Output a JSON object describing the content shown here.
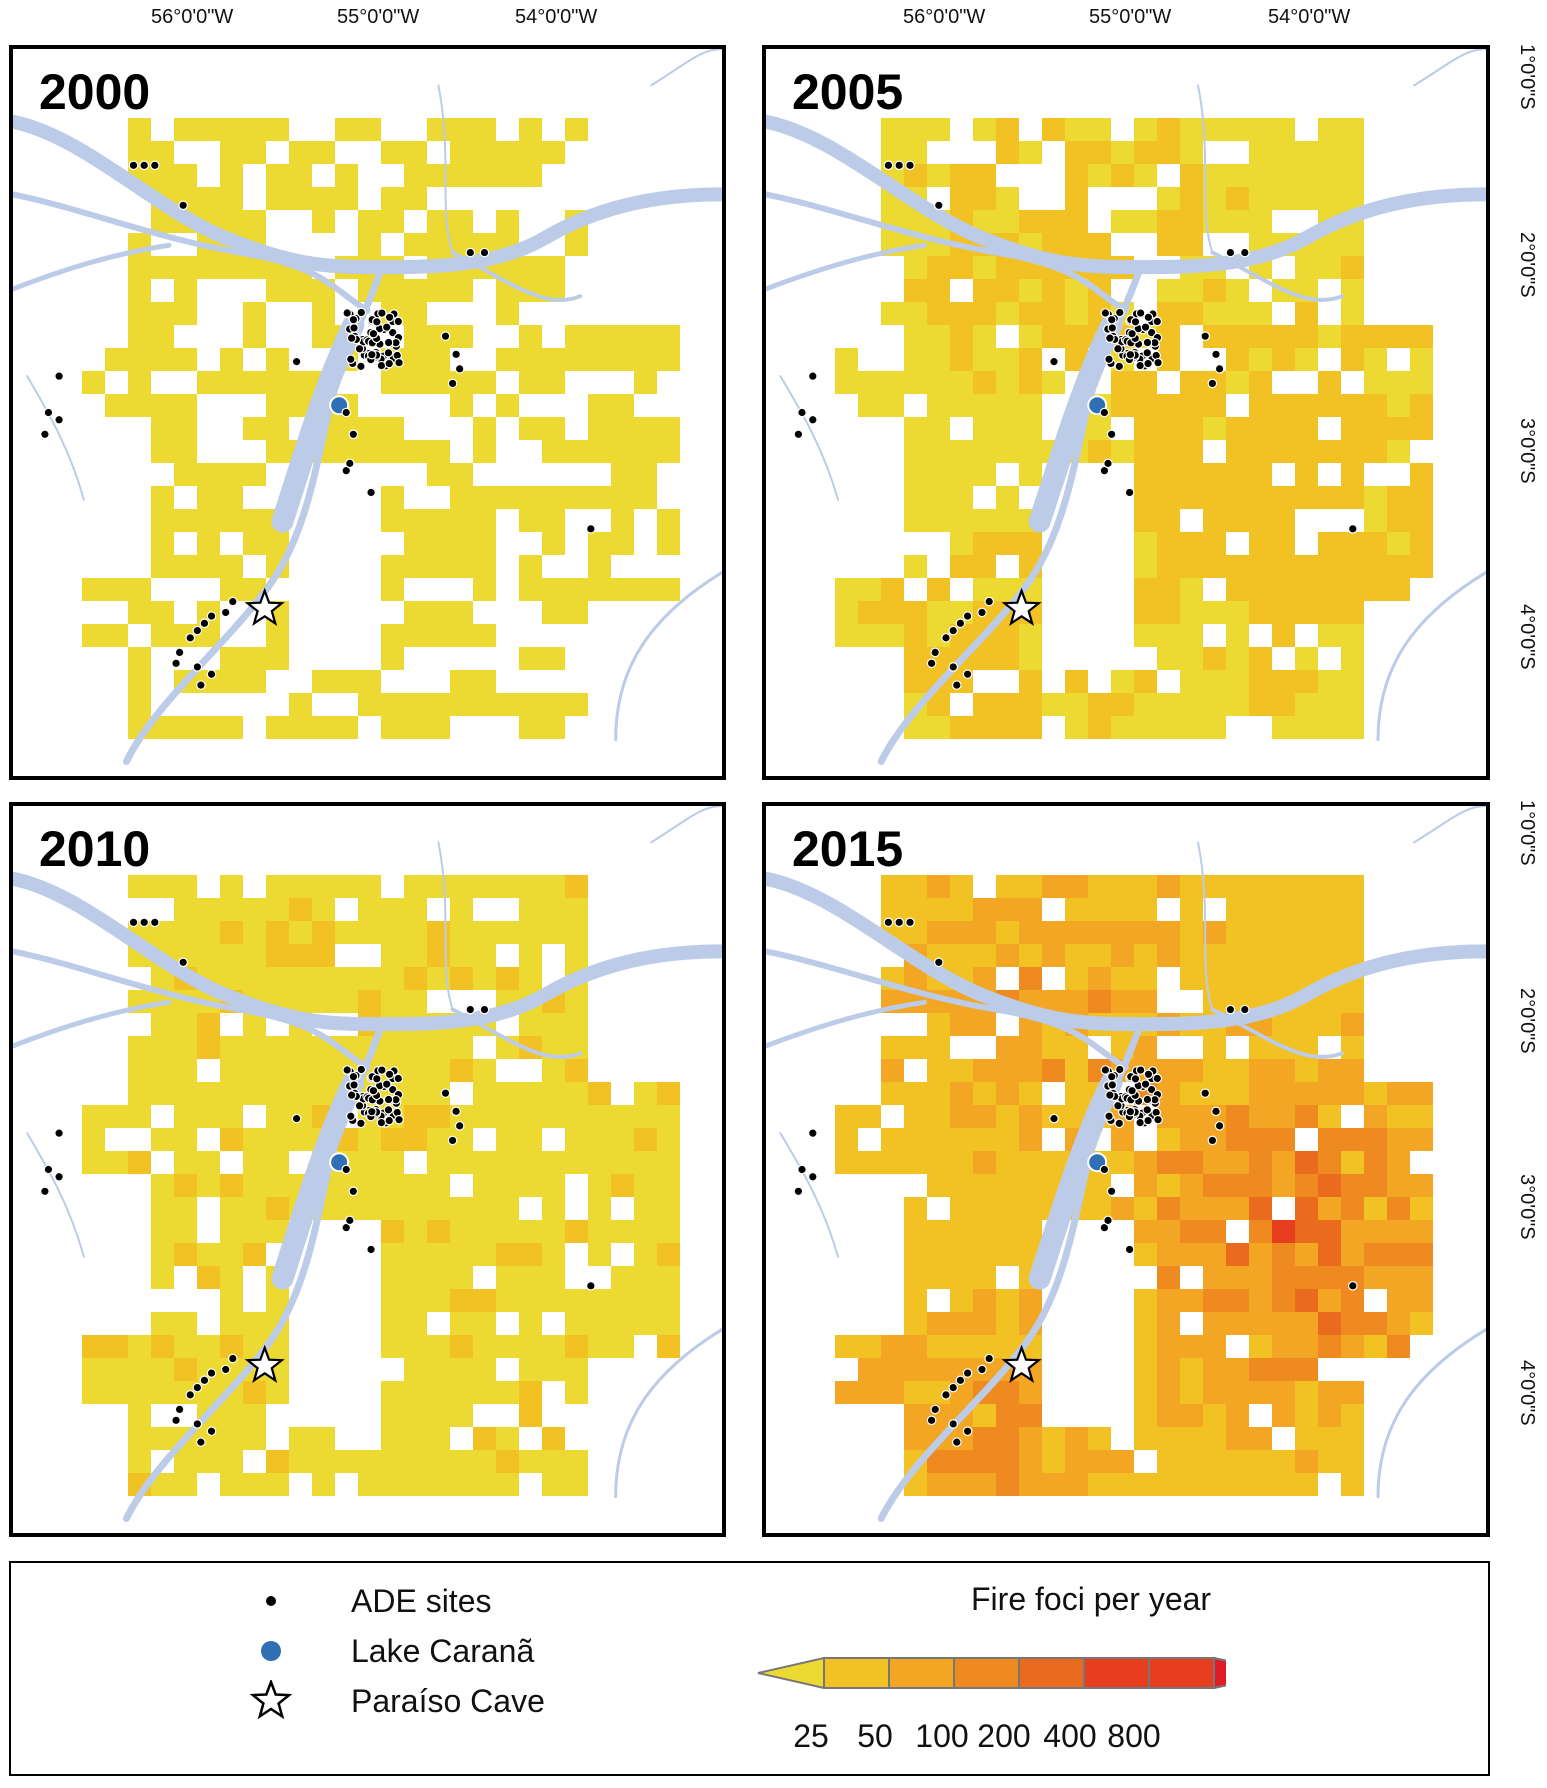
{
  "panels": [
    {
      "year": "2000",
      "intensity": 0
    },
    {
      "year": "2005",
      "intensity": 1
    },
    {
      "year": "2010",
      "intensity": 0.4
    },
    {
      "year": "2015",
      "intensity": 3
    }
  ],
  "axes": {
    "longitude_labels": [
      "56°0'0\"W",
      "55°0'0\"W",
      "54°0'0\"W"
    ],
    "latitude_labels": [
      "1°0'0\"S",
      "2°0'0\"S",
      "3°0'0\"S",
      "4°0'0\"S"
    ]
  },
  "legend": {
    "items": [
      {
        "label": "ADE sites",
        "symbol": "black-dot"
      },
      {
        "label": "Lake Caranã",
        "symbol": "blue-dot"
      },
      {
        "label": "Paraíso Cave",
        "symbol": "white-star"
      }
    ],
    "colorbar_title": "Fire foci per year",
    "colorbar_labels": [
      "25",
      "50",
      "100",
      "200",
      "400",
      "800"
    ],
    "colorbar_colors": [
      "#ecd931",
      "#f2c224",
      "#f2a623",
      "#ee8a20",
      "#ea6a1e",
      "#e63e1f",
      "#e21c24"
    ]
  },
  "colors": {
    "river": "#bccbe8",
    "ade_site": "#000000",
    "lake_carana": "#2f6fb5",
    "fire_low": "#ecdf2a"
  }
}
